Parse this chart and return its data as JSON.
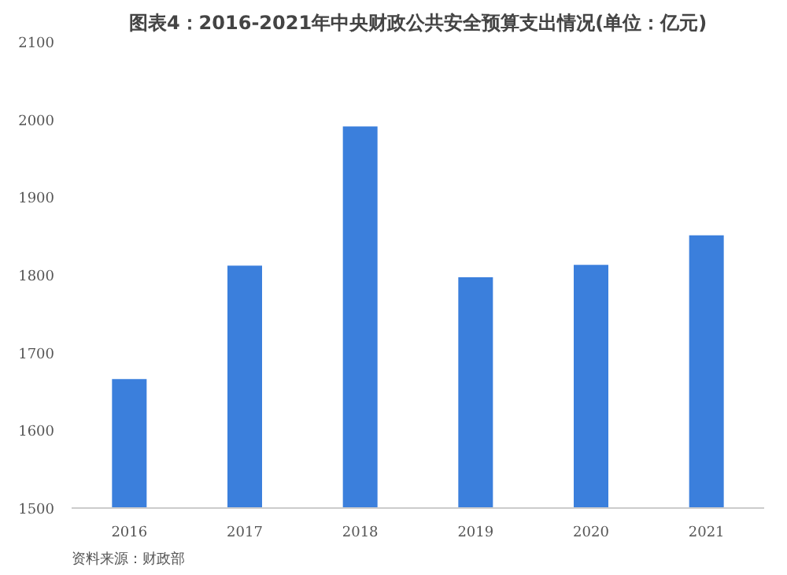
{
  "chart_data": {
    "type": "bar",
    "title": "图表4：2016-2021年中央财政公共安全预算支出情况(单位：亿元)",
    "categories": [
      "2016",
      "2017",
      "2018",
      "2019",
      "2020",
      "2021"
    ],
    "values": [
      1666,
      1812,
      1991,
      1797,
      1813,
      1851
    ],
    "color": "#3b7fdc",
    "ylim": [
      1500,
      2100
    ],
    "yticks": [
      1500,
      1600,
      1700,
      1800,
      1900,
      2000,
      2100
    ],
    "grid": false,
    "annotations": [
      "资料来源：财政部"
    ]
  }
}
